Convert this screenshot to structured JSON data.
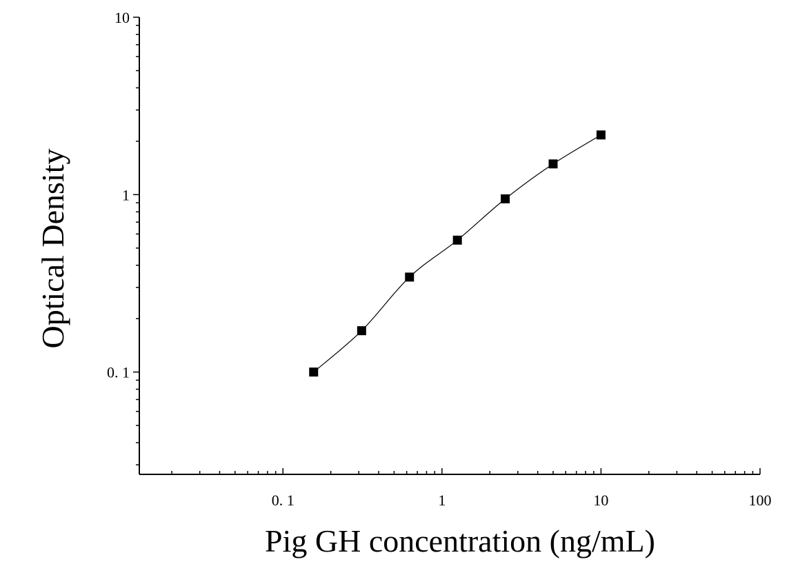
{
  "chart_data": {
    "type": "scatter",
    "title": "",
    "xlabel": "Pig GH concentration (ng/mL)",
    "ylabel": "Optical Density",
    "x_scale": "log",
    "y_scale": "log",
    "xlim": [
      0.0125,
      100
    ],
    "ylim": [
      0.0265,
      10
    ],
    "x_tick_values": [
      0.1,
      1,
      10,
      100
    ],
    "x_tick_labels": [
      "0. 1",
      "1",
      "10",
      "100"
    ],
    "y_tick_values": [
      0.1,
      1,
      10
    ],
    "y_tick_labels": [
      "0. 1",
      "1",
      "10"
    ],
    "grid": false,
    "series": [
      {
        "marker": "square",
        "fit_curve": true,
        "x": [
          0.156,
          0.3125,
          0.625,
          1.25,
          2.5,
          5,
          10
        ],
        "y": [
          0.1,
          0.171,
          0.343,
          0.554,
          0.947,
          1.49,
          2.17
        ]
      }
    ],
    "colors": {
      "marker": "#000000",
      "curve": "#000000",
      "axis": "#000000"
    }
  }
}
